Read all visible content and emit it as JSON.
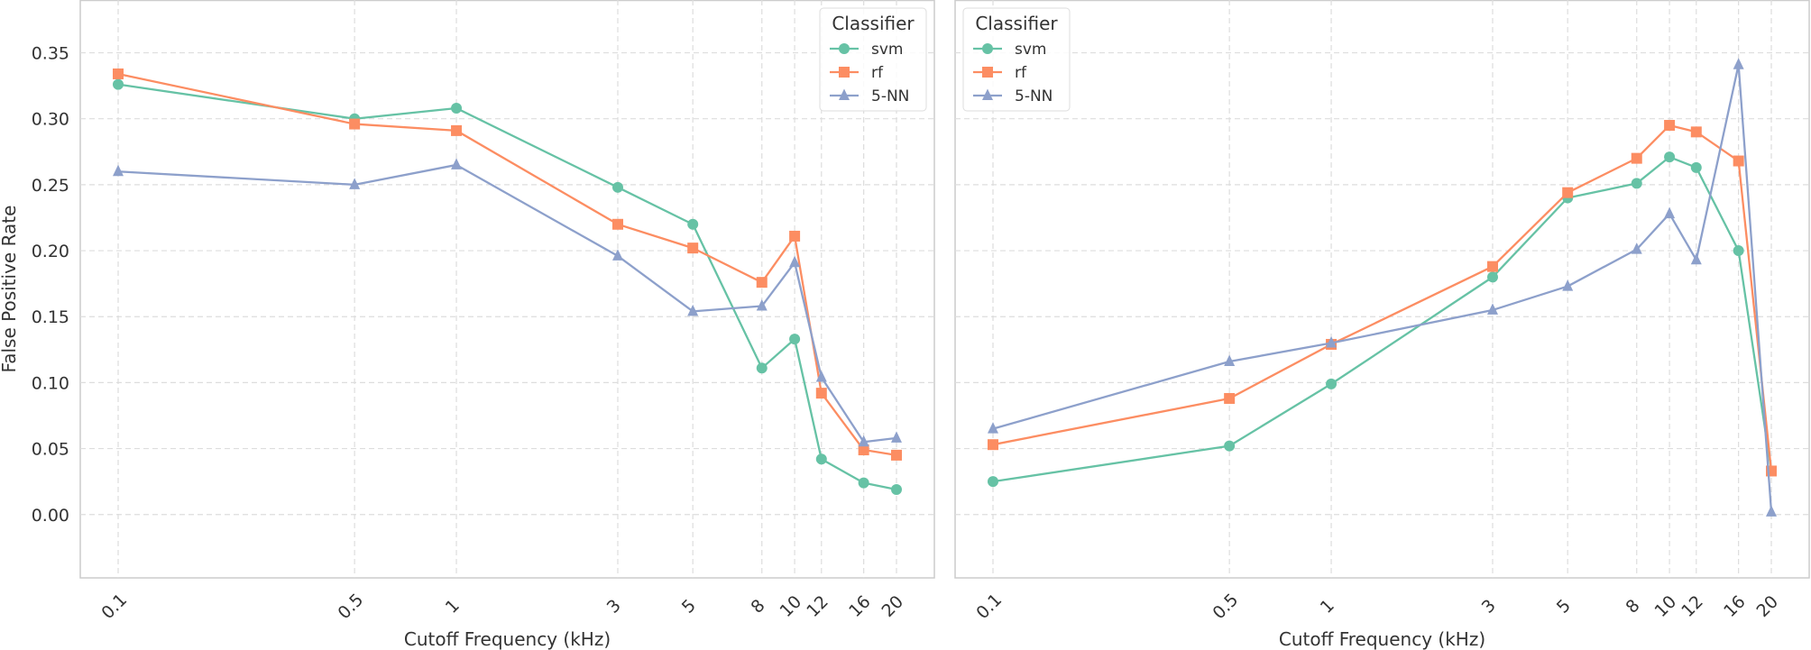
{
  "chart_data": [
    {
      "type": "line",
      "xlabel": "Cutoff Frequency (kHz)",
      "ylabel": "False Positive Rate",
      "x_scale": "log",
      "x": [
        0.1,
        0.5,
        1,
        3,
        5,
        8,
        10,
        12,
        16,
        20
      ],
      "x_tick_labels": [
        "0.1",
        "0.5",
        "1",
        "3",
        "5",
        "8",
        "10",
        "12",
        "16",
        "20"
      ],
      "ylim": [
        -0.048,
        0.39
      ],
      "y_ticks": [
        0.0,
        0.05,
        0.1,
        0.15,
        0.2,
        0.25,
        0.3,
        0.35
      ],
      "y_tick_labels": [
        "0.00",
        "0.05",
        "0.10",
        "0.15",
        "0.20",
        "0.25",
        "0.30",
        "0.35"
      ],
      "grid": true,
      "legend": {
        "title": "Classifier",
        "placement": "top-right"
      },
      "series": [
        {
          "name": "svm",
          "marker": "circle",
          "color": "#66c2a5",
          "values": [
            0.326,
            0.3,
            0.308,
            0.248,
            0.22,
            0.111,
            0.133,
            0.042,
            0.024,
            0.019
          ]
        },
        {
          "name": "rf",
          "marker": "square",
          "color": "#fc8d62",
          "values": [
            0.334,
            0.296,
            0.291,
            0.22,
            0.202,
            0.176,
            0.211,
            0.092,
            0.049,
            0.045
          ]
        },
        {
          "name": "5-NN",
          "marker": "triangle",
          "color": "#8da0cb",
          "values": [
            0.26,
            0.25,
            0.265,
            0.196,
            0.154,
            0.158,
            0.191,
            0.104,
            0.055,
            0.058
          ]
        }
      ]
    },
    {
      "type": "line",
      "xlabel": "Cutoff Frequency (kHz)",
      "ylabel": "",
      "x_scale": "log",
      "x": [
        0.1,
        0.5,
        1,
        3,
        5,
        8,
        10,
        12,
        16,
        20
      ],
      "x_tick_labels": [
        "0.1",
        "0.5",
        "1",
        "3",
        "5",
        "8",
        "10",
        "12",
        "16",
        "20"
      ],
      "ylim": [
        -0.048,
        0.39
      ],
      "y_ticks": [
        0.0,
        0.05,
        0.1,
        0.15,
        0.2,
        0.25,
        0.3,
        0.35
      ],
      "y_tick_labels": [],
      "grid": true,
      "legend": {
        "title": "Classifier",
        "placement": "top-left"
      },
      "series": [
        {
          "name": "svm",
          "marker": "circle",
          "color": "#66c2a5",
          "values": [
            0.025,
            0.052,
            0.099,
            0.18,
            0.24,
            0.251,
            0.271,
            0.263,
            0.2,
            0.033
          ]
        },
        {
          "name": "rf",
          "marker": "square",
          "color": "#fc8d62",
          "values": [
            0.053,
            0.088,
            0.129,
            0.188,
            0.244,
            0.27,
            0.295,
            0.29,
            0.268,
            0.033
          ]
        },
        {
          "name": "5-NN",
          "marker": "triangle",
          "color": "#8da0cb",
          "values": [
            0.065,
            0.116,
            0.13,
            0.155,
            0.173,
            0.201,
            0.228,
            0.193,
            0.341,
            0.002
          ]
        }
      ]
    }
  ]
}
